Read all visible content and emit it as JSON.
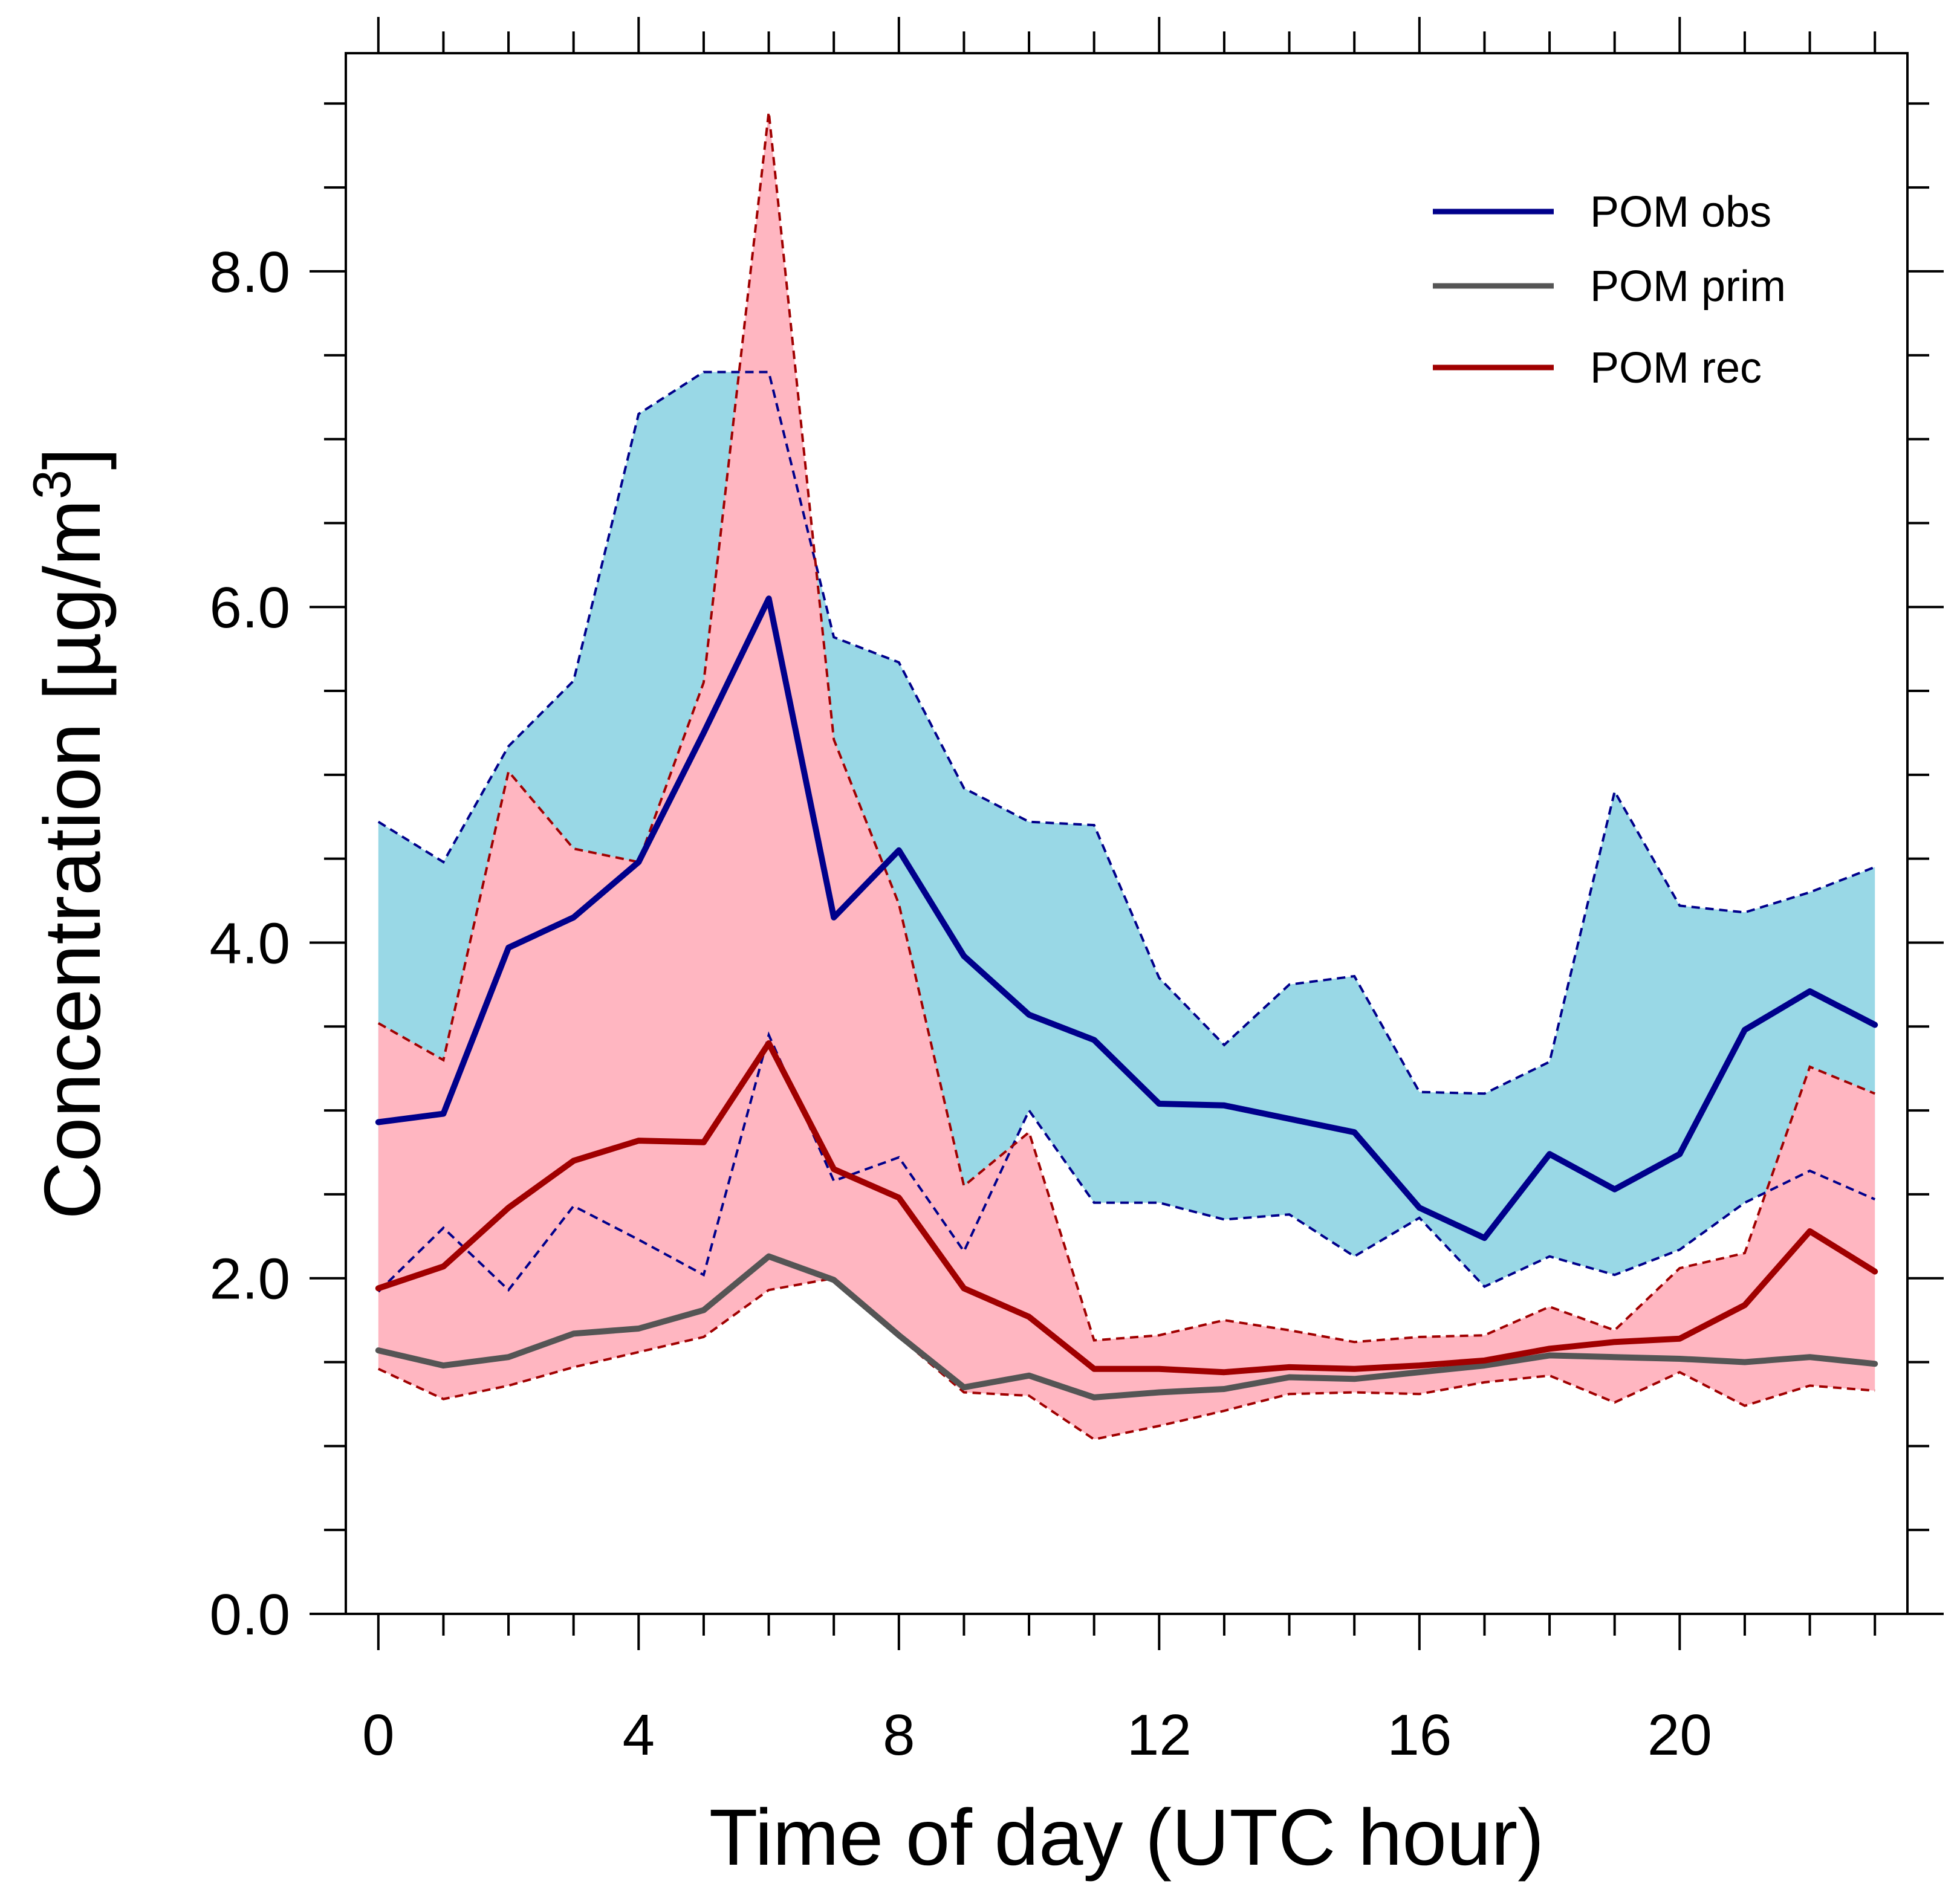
{
  "chart_data": {
    "type": "line",
    "title": "",
    "xlabel": "Time of day (UTC hour)",
    "ylabel_main": "Concentration [µg/m",
    "ylabel_sup": "3",
    "ylabel_tail": "]",
    "xlim": [
      -0.5,
      23.5
    ],
    "ylim": [
      0,
      9.3
    ],
    "xticks": [
      0,
      4,
      8,
      12,
      16,
      20
    ],
    "xtick_labels": [
      "0",
      "4",
      "8",
      "12",
      "16",
      "20"
    ],
    "yticks": [
      0,
      2,
      4,
      6,
      8
    ],
    "ytick_labels": [
      "0.0",
      "2.0",
      "4.0",
      "6.0",
      "8.0"
    ],
    "grid": false,
    "legend_position": "top-right",
    "x": [
      0,
      1,
      2,
      3,
      4,
      5,
      6,
      7,
      8,
      9,
      10,
      11,
      12,
      13,
      14,
      15,
      16,
      17,
      18,
      19,
      20,
      21,
      22,
      23
    ],
    "series": [
      {
        "name": "POM obs",
        "color": "#00008b",
        "fill_color": "#99d8e6",
        "values": [
          2.93,
          2.98,
          3.97,
          4.15,
          4.48,
          5.25,
          6.05,
          4.15,
          4.55,
          3.92,
          3.57,
          3.42,
          3.04,
          3.03,
          2.95,
          2.87,
          2.42,
          2.24,
          2.74,
          2.53,
          2.74,
          3.48,
          3.71,
          3.51
        ],
        "upper": [
          4.72,
          4.48,
          5.17,
          5.56,
          7.15,
          7.4,
          7.4,
          5.82,
          5.67,
          4.92,
          4.72,
          4.7,
          3.79,
          3.39,
          3.75,
          3.8,
          3.11,
          3.1,
          3.29,
          4.9,
          4.22,
          4.18,
          4.3,
          4.45
        ],
        "lower": [
          1.92,
          2.3,
          1.93,
          2.43,
          2.23,
          2.02,
          3.45,
          2.58,
          2.72,
          2.16,
          3.0,
          2.45,
          2.45,
          2.35,
          2.38,
          2.13,
          2.36,
          1.95,
          2.13,
          2.02,
          2.17,
          2.45,
          2.64,
          2.47
        ]
      },
      {
        "name": "POM prim",
        "color": "#555555",
        "values": [
          1.57,
          1.48,
          1.53,
          1.67,
          1.7,
          1.81,
          2.13,
          1.99,
          1.66,
          1.35,
          1.42,
          1.29,
          1.32,
          1.34,
          1.41,
          1.4,
          1.44,
          1.48,
          1.54,
          1.53,
          1.52,
          1.5,
          1.53,
          1.49
        ]
      },
      {
        "name": "POM rec",
        "color": "#a00000",
        "fill_color": "#ffb6c1",
        "values": [
          1.94,
          2.07,
          2.42,
          2.7,
          2.82,
          2.81,
          3.4,
          2.65,
          2.48,
          1.94,
          1.77,
          1.46,
          1.46,
          1.44,
          1.47,
          1.46,
          1.48,
          1.51,
          1.58,
          1.62,
          1.64,
          1.84,
          2.28,
          2.04
        ],
        "upper": [
          3.52,
          3.3,
          5.02,
          4.56,
          4.48,
          5.55,
          8.95,
          5.21,
          4.23,
          2.55,
          2.87,
          1.63,
          1.66,
          1.75,
          1.69,
          1.62,
          1.65,
          1.66,
          1.83,
          1.69,
          2.06,
          2.15,
          3.26,
          3.1
        ],
        "lower": [
          1.46,
          1.28,
          1.36,
          1.47,
          1.56,
          1.65,
          1.93,
          2.0,
          1.65,
          1.32,
          1.3,
          1.04,
          1.12,
          1.21,
          1.31,
          1.32,
          1.31,
          1.38,
          1.42,
          1.26,
          1.44,
          1.24,
          1.36,
          1.33
        ]
      }
    ]
  }
}
